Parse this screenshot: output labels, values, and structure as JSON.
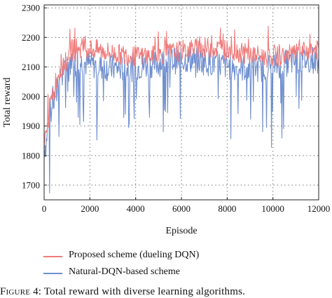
{
  "chart_data": {
    "type": "line",
    "xlabel": "Episode",
    "ylabel": "Total reward",
    "xlim": [
      0,
      12000
    ],
    "ylim": [
      1650,
      2310
    ],
    "x_ticks": [
      0,
      2000,
      4000,
      6000,
      8000,
      10000,
      12000
    ],
    "y_ticks": [
      1700,
      1800,
      1900,
      2000,
      2100,
      2200,
      2300
    ],
    "grid": "dotted",
    "legend_position": "bottom",
    "episodes_per_point": 40,
    "series": [
      {
        "name": "Proposed scheme (dueling DQN)",
        "color": "#f07a7a",
        "plateau": 2150,
        "values": [
          1840,
          1850,
          1860,
          1900,
          1935,
          1920,
          1960,
          1990,
          1970,
          2010,
          2020,
          2000,
          2040,
          2060,
          2045,
          2080,
          2090,
          2070,
          2100,
          2110,
          2085,
          2120,
          2095,
          2130,
          2110,
          2140,
          2150,
          2120,
          2165,
          2140,
          2175,
          2150,
          2180,
          2160,
          2135,
          2175,
          2150,
          2185,
          2165,
          2140
        ]
      },
      {
        "name": "Natural-DQN-based scheme",
        "color": "#6f8fd0",
        "plateau": 2110,
        "values": [
          1820,
          1840,
          1835,
          1870,
          1910,
          1890,
          1935,
          1960,
          1940,
          1980,
          1995,
          1970,
          2010,
          2030,
          2005,
          2045,
          2060,
          2035,
          2075,
          2085,
          2055,
          2095,
          2070,
          2105,
          2080,
          2110,
          2120,
          2090,
          2130,
          2105,
          2140,
          2115,
          2145,
          2120,
          2095,
          2135,
          2110,
          2150,
          2125,
          2100
        ]
      }
    ]
  },
  "caption": {
    "prefix": "Figure 4:",
    "text": "Total reward with diverse learning algorithms."
  }
}
